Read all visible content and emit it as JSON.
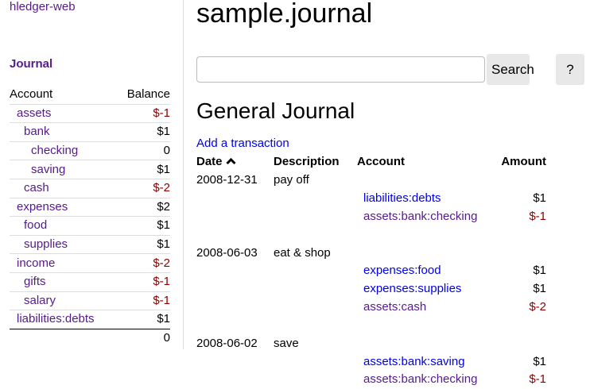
{
  "sidebar": {
    "brand": "hledger-web",
    "journal_link": "Journal",
    "col_account": "Account",
    "col_balance": "Balance",
    "accounts": [
      {
        "name": "assets",
        "balance": "$-1",
        "depth": 1,
        "neg": true
      },
      {
        "name": "bank",
        "balance": "$1",
        "depth": 2,
        "neg": false
      },
      {
        "name": "checking",
        "balance": "0",
        "depth": 3,
        "neg": false
      },
      {
        "name": "saving",
        "balance": "$1",
        "depth": 3,
        "neg": false
      },
      {
        "name": "cash",
        "balance": "$-2",
        "depth": 2,
        "neg": true
      },
      {
        "name": "expenses",
        "balance": "$2",
        "depth": 1,
        "neg": false
      },
      {
        "name": "food",
        "balance": "$1",
        "depth": 2,
        "neg": false
      },
      {
        "name": "supplies",
        "balance": "$1",
        "depth": 2,
        "neg": false
      },
      {
        "name": "income",
        "balance": "$-2",
        "depth": 1,
        "neg": true
      },
      {
        "name": "gifts",
        "balance": "$-1",
        "depth": 2,
        "neg": true
      },
      {
        "name": "salary",
        "balance": "$-1",
        "depth": 2,
        "neg": true
      },
      {
        "name": "liabilities:debts",
        "balance": "$1",
        "depth": 1,
        "neg": false
      }
    ],
    "total": "0"
  },
  "main": {
    "title": "sample.journal",
    "search_placeholder": "",
    "search_value": "",
    "search_label": "Search",
    "help_label": "?",
    "heading": "General Journal",
    "add_link": "Add a transaction",
    "columns": {
      "date": "Date",
      "sort_icon": "chevron-up-icon",
      "description": "Description",
      "account": "Account",
      "amount": "Amount"
    },
    "transactions": [
      {
        "date": "2008-12-31",
        "description": "pay off",
        "postings": [
          {
            "account": "liabilities:debts",
            "amount": "$1",
            "visited": false,
            "neg": false
          },
          {
            "account": "assets:bank:checking",
            "amount": "$-1",
            "visited": true,
            "neg": true
          }
        ]
      },
      {
        "date": "2008-06-03",
        "description": "eat & shop",
        "postings": [
          {
            "account": "expenses:food",
            "amount": "$1",
            "visited": false,
            "neg": false
          },
          {
            "account": "expenses:supplies",
            "amount": "$1",
            "visited": false,
            "neg": false
          },
          {
            "account": "assets:cash",
            "amount": "$-2",
            "visited": true,
            "neg": true
          }
        ]
      },
      {
        "date": "2008-06-02",
        "description": "save",
        "postings": [
          {
            "account": "assets:bank:saving",
            "amount": "$1",
            "visited": false,
            "neg": false
          },
          {
            "account": "assets:bank:checking",
            "amount": "$-1",
            "visited": true,
            "neg": true
          }
        ]
      }
    ]
  },
  "colors": {
    "link": "#0000ee",
    "visited": "#551a8b",
    "negative": "#8b0000"
  }
}
